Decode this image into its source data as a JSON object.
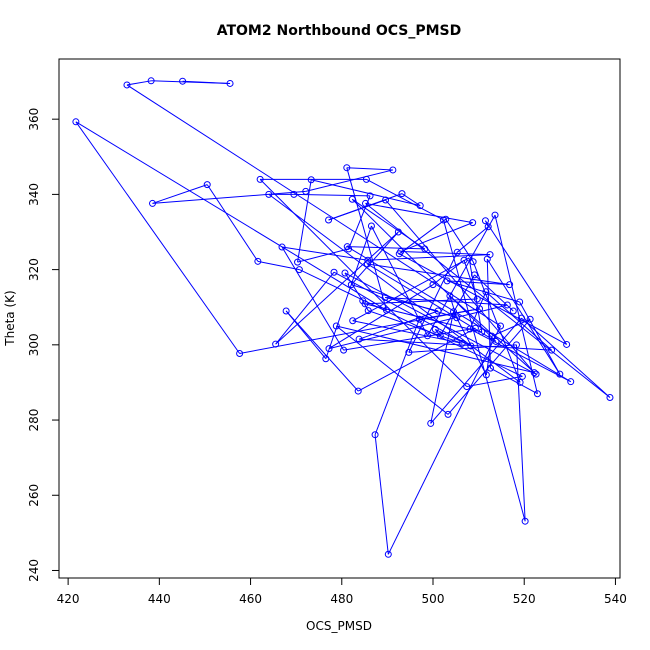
{
  "chart_data": {
    "type": "scatter",
    "title": "ATOM2 Northbound OCS_PMSD",
    "xlabel": "OCS_PMSD",
    "ylabel": "Theta (K)",
    "xlim": [
      418,
      541
    ],
    "ylim": [
      238,
      376
    ],
    "xticks": [
      420,
      440,
      460,
      480,
      500,
      520,
      540
    ],
    "yticks": [
      240,
      260,
      280,
      300,
      320,
      340,
      360
    ],
    "point_color": "#0000ff",
    "line_color": "#0000ff",
    "marker": "open-circle",
    "connected": true,
    "series": [
      {
        "x": [
          445.1,
          455.5,
          438.2,
          432.9,
          514.8,
          490.2,
          487.3,
          497.0,
          510.2,
          457.6,
          421.7,
          489.8,
          481.1,
          491.2,
          472.1,
          438.5,
          450.5,
          461.6,
          470.7,
          519.6,
          507.4,
          462.1,
          485.4,
          502.3,
          520.2,
          518.3,
          494.7,
          505.3,
          512.1,
          511.5,
          529.3,
          492.6,
          502.8,
          508.8,
          519.1,
          464.0,
          469.5,
          486.2,
          481.5,
          470.3,
          473.3,
          497.2,
          493.2,
          477.1,
          489.6,
          522.2,
          478.8,
          503.3,
          521.3,
          512.9,
          511.7,
          504.5,
          499.5,
          519.4,
          538.8,
          485.2,
          508.7,
          492.9,
          512.5,
          485.7,
          466.9,
          480.4,
          509.3,
          483.6,
          467.8,
          476.5,
          486.5,
          498.8,
          513.6,
          522.9,
          512.6,
          511.9,
          527.8,
          519.0,
          503.1,
          516.8,
          485.6,
          513.8,
          482.3,
          498.2,
          481.2,
          530.2,
          508.1,
          511.6,
          526.0,
          483.8,
          501.1,
          489.5,
          516.3,
          477.2,
          500.0,
          506.8,
          509.7,
          485.1,
          510.7,
          507.9,
          482.4,
          506.4,
          485.8,
          484.6,
          480.7,
          522.6,
          503.7,
          505.2,
          482.1,
          492.4,
          465.5,
          478.3,
          508.3,
          500.5,
          501.6,
          509.1,
          517.6
        ],
        "y": [
          370.1,
          369.5,
          370.2,
          369.1,
          305.0,
          244.3,
          276.1,
          306.8,
          309.6,
          297.7,
          359.3,
          309.2,
          347.1,
          346.5,
          340.8,
          337.6,
          342.6,
          322.2,
          320.0,
          291.6,
          288.9,
          344.0,
          344.0,
          333.2,
          253.1,
          300.0,
          298.0,
          324.6,
          331.4,
          333.0,
          300.1,
          324.2,
          333.4,
          322.1,
          290.0,
          340.0,
          340.0,
          339.6,
          325.5,
          322.0,
          343.9,
          337.0,
          340.2,
          333.2,
          338.5,
          292.6,
          305.0,
          281.5,
          306.8,
          302.3,
          292.0,
          308.8,
          279.1,
          307.1,
          286.0,
          337.6,
          332.5,
          324.8,
          324.0,
          322.5,
          326.0,
          298.6,
          304.4,
          287.7,
          309.0,
          296.3,
          331.6,
          302.4,
          334.5,
          287.0,
          293.8,
          322.8,
          292.2,
          311.4,
          317.0,
          316.0,
          321.5,
          300.9,
          338.7,
          325.5,
          326.1,
          290.2,
          304.2,
          314.1,
          298.6,
          301.5,
          309.0,
          312.6,
          310.6,
          299.0,
          316.0,
          322.5,
          312.2,
          310.9,
          303.4,
          323.1,
          306.4,
          300.4,
          309.1,
          311.7,
          319.1,
          292.2,
          313.0,
          307.2,
          316.0,
          330.0,
          300.2,
          319.3,
          299.7,
          304.1,
          302.4,
          318.6,
          309.0
        ]
      }
    ]
  }
}
